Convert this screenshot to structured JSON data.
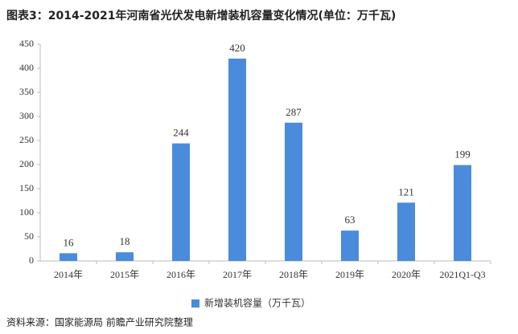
{
  "chart_data": {
    "type": "bar",
    "title": "图表3：2014-2021年河南省光伏发电新增装机容量变化情况(单位：万千瓦)",
    "categories": [
      "2014年",
      "2015年",
      "2016年",
      "2017年",
      "2018年",
      "2019年",
      "2020年",
      "2021Q1-Q3"
    ],
    "series": [
      {
        "name": "新增装机容量（万千瓦）",
        "color": "#4a8bdb",
        "values": [
          16,
          18,
          244,
          420,
          287,
          63,
          121,
          199
        ]
      }
    ],
    "ylim": [
      0,
      450
    ],
    "yticks": [
      0,
      50,
      100,
      150,
      200,
      250,
      300,
      350,
      400,
      450
    ],
    "grid": false,
    "legend": "bottom",
    "source": "资料来源：国家能源局 前瞻产业研究院整理"
  }
}
